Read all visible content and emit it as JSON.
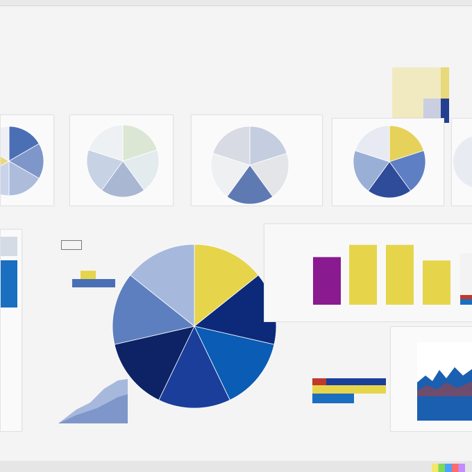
{
  "header": {
    "title": ""
  },
  "panels": {
    "top_right_legend_colors": [
      "#f1eac0",
      "#e8d97a",
      "#c9cee0",
      "#9fb2d8",
      "#243f8f"
    ]
  },
  "pie_charts": [
    {
      "colors": [
        "#4a6fb5",
        "#7e96c9",
        "#aebcdc",
        "#c9d3ea",
        "#e9d87a",
        "#eef0f6"
      ]
    },
    {
      "colors": [
        "#dce6d4",
        "#e4ebee",
        "#aab7d3",
        "#c7d2e5",
        "#eef1f4"
      ]
    },
    {
      "colors": [
        "#c5cde0",
        "#e3e5e8",
        "#5f79b3",
        "#eff0f2",
        "#d8dbe3"
      ]
    },
    {
      "colors": [
        "#e6d15a",
        "#5e7fc4",
        "#2f4c9a",
        "#9aafd6",
        "#e7eaf2"
      ]
    }
  ],
  "main_pie": {
    "colors": [
      "#e6d54b",
      "#0d2a7a",
      "#0a5cb4",
      "#1a3e9a",
      "#0d2366",
      "#5d7fbf",
      "#a7b8dd"
    ]
  },
  "bar_chart": {
    "colors": [
      "#8a1a8f",
      "#e6d54b",
      "#e6d54b",
      "#e6d54b"
    ]
  },
  "chart_data": {
    "type": "bar",
    "categories": [
      "",
      "",
      "",
      ""
    ],
    "values": [
      70,
      88,
      88,
      65
    ],
    "ylim": [
      0,
      100
    ]
  }
}
